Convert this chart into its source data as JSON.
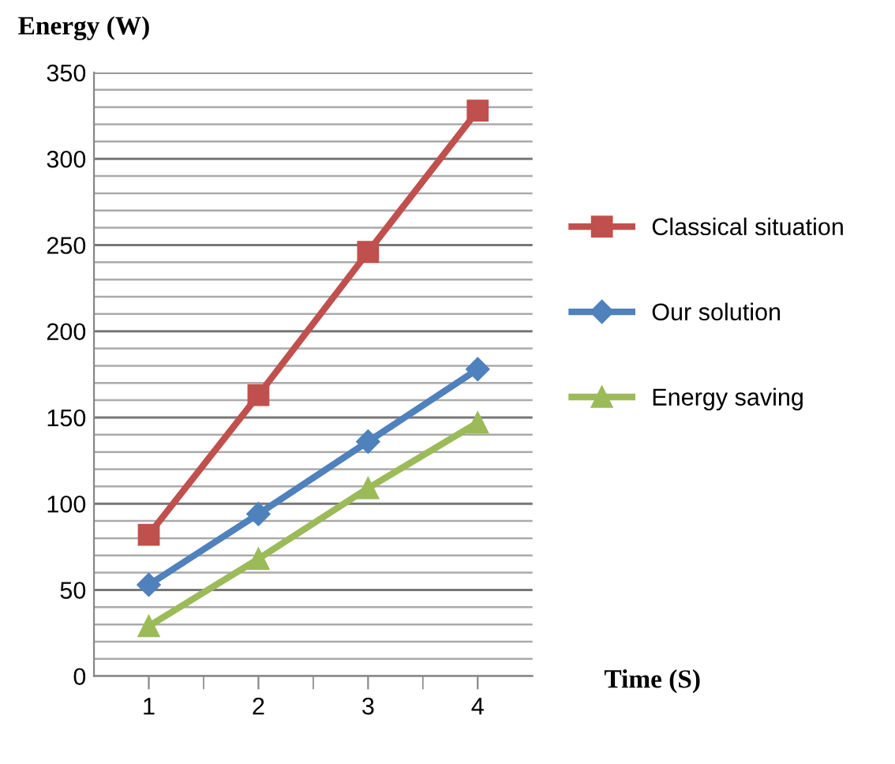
{
  "chart_data": {
    "type": "line",
    "xlabel": "Time (S)",
    "ylabel": "Energy (W)",
    "categories": [
      "1",
      "2",
      "3",
      "4"
    ],
    "series": [
      {
        "name": "Classical situation",
        "color": "#c0504d",
        "marker": "square",
        "values": [
          82,
          163,
          246,
          328
        ]
      },
      {
        "name": "Our solution",
        "color": "#4f81bd",
        "marker": "diamond",
        "values": [
          53,
          94,
          136,
          178
        ]
      },
      {
        "name": "Energy saving",
        "color": "#9bbb59",
        "marker": "triangle",
        "values": [
          29,
          68,
          109,
          147
        ]
      }
    ],
    "ylim": [
      0,
      350
    ],
    "yticks": [
      0,
      {
        "value": 10,
        "label": null
      },
      {
        "value": 20,
        "label": null
      },
      {
        "value": 30,
        "label": null
      },
      {
        "value": 40,
        "label": null
      },
      50,
      {
        "value": 60,
        "label": null
      },
      {
        "value": 70,
        "label": null
      },
      {
        "value": 80,
        "label": null
      },
      {
        "value": 90,
        "label": null
      },
      100,
      {
        "value": 110,
        "label": null
      },
      {
        "value": 120,
        "label": null
      },
      {
        "value": 130,
        "label": null
      },
      {
        "value": 140,
        "label": null
      },
      150,
      {
        "value": 160,
        "label": null
      },
      {
        "value": 170,
        "label": null
      },
      {
        "value": 180,
        "label": null
      },
      {
        "value": 190,
        "label": null
      },
      200,
      {
        "value": 210,
        "label": null
      },
      {
        "value": 220,
        "label": null
      },
      {
        "value": 230,
        "label": null
      },
      {
        "value": 240,
        "label": null
      },
      250,
      {
        "value": 260,
        "label": null
      },
      {
        "value": 270,
        "label": null
      },
      {
        "value": 280,
        "label": null
      },
      {
        "value": 290,
        "label": null
      },
      300,
      {
        "value": 310,
        "label": null
      },
      {
        "value": 320,
        "label": null
      },
      {
        "value": 330,
        "label": null
      },
      {
        "value": 340,
        "label": null
      },
      350
    ],
    "grid": "y",
    "legend": "right",
    "line_style": "solid"
  }
}
